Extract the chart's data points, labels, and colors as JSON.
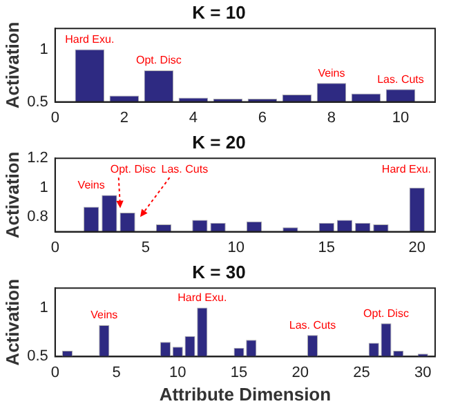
{
  "chart_data": [
    {
      "type": "bar",
      "title": "K = 10",
      "ylabel": "Activation",
      "x": [
        1,
        2,
        3,
        4,
        5,
        6,
        7,
        8,
        9,
        10
      ],
      "values": [
        1.0,
        0.56,
        0.8,
        0.54,
        0.53,
        0.53,
        0.57,
        0.68,
        0.58,
        0.62
      ],
      "color": "#2e2a82",
      "xlim": [
        0,
        11
      ],
      "xticks": [
        0,
        2,
        4,
        6,
        8,
        10
      ],
      "ylim": [
        0.5,
        1.2
      ],
      "yticks": [
        0.5,
        1
      ],
      "grid": false,
      "legend": false,
      "annotations": [
        {
          "text": "Hard Exu.",
          "x": 1,
          "y": 1.0
        },
        {
          "text": "Opt. Disc",
          "x": 3,
          "y": 0.8
        },
        {
          "text": "Veins",
          "x": 8,
          "y": 0.68
        },
        {
          "text": "Las. Cuts",
          "x": 10,
          "y": 0.62
        }
      ]
    },
    {
      "type": "bar",
      "title": "K = 20",
      "ylabel": "Activation",
      "x": [
        2,
        3,
        4,
        6,
        8,
        9,
        11,
        13,
        15,
        16,
        17,
        18,
        20
      ],
      "values": [
        0.87,
        0.95,
        0.83,
        0.75,
        0.78,
        0.76,
        0.77,
        0.73,
        0.76,
        0.78,
        0.76,
        0.75,
        1.0
      ],
      "color": "#2e2a82",
      "xlim": [
        0,
        21
      ],
      "xticks": [
        0,
        5,
        10,
        15,
        20
      ],
      "ylim": [
        0.7,
        1.2
      ],
      "yticks": [
        0.8,
        1,
        1.2
      ],
      "grid": false,
      "legend": false,
      "annotations": [
        {
          "text": "Veins",
          "x": 2,
          "y": 0.87
        },
        {
          "text": "Opt. Disc",
          "x": 3.6,
          "y": 0.86
        },
        {
          "text": "Las. Cuts",
          "x": 4.7,
          "y": 0.8
        },
        {
          "text": "Hard Exu.",
          "x": 20,
          "y": 1.0
        }
      ]
    },
    {
      "type": "bar",
      "title": "K = 30",
      "xlabel": "Attribute Dimension",
      "ylabel": "Activation",
      "x": [
        1,
        4,
        9,
        10,
        11,
        12,
        15,
        16,
        21,
        26,
        27,
        28,
        30
      ],
      "values": [
        0.56,
        0.82,
        0.65,
        0.6,
        0.71,
        1.0,
        0.59,
        0.67,
        0.72,
        0.64,
        0.84,
        0.56,
        0.53
      ],
      "color": "#2e2a82",
      "xlim": [
        0,
        31
      ],
      "xticks": [
        0,
        5,
        10,
        15,
        20,
        25,
        30
      ],
      "ylim": [
        0.5,
        1.2
      ],
      "yticks": [
        0.5,
        1
      ],
      "grid": false,
      "legend": false,
      "annotations": [
        {
          "text": "Veins",
          "x": 4,
          "y": 0.82
        },
        {
          "text": "Hard Exu.",
          "x": 12,
          "y": 1.0
        },
        {
          "text": "Las. Cuts",
          "x": 21,
          "y": 0.72
        },
        {
          "text": "Opt. Disc",
          "x": 27,
          "y": 0.84
        }
      ]
    }
  ]
}
